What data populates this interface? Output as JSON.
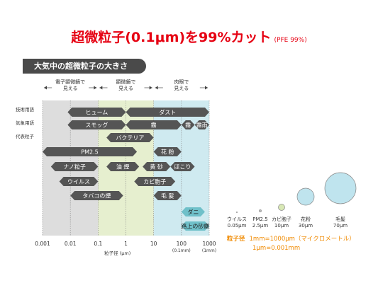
{
  "headline": {
    "main": "超微粒子(0.1μm)を99%カット",
    "sub": "(PFE 99%)"
  },
  "section_title": "大気中の超微粒子の大きさ",
  "regions": [
    {
      "label": "電子顕微鏡で\n見える",
      "from": 0.001,
      "to": 0.1,
      "color": "#dddddd"
    },
    {
      "label": "顕微鏡で\n見える",
      "from": 0.1,
      "to": 10,
      "color": "#e6efcf"
    },
    {
      "label": "肉眼で\n見える",
      "from": 10,
      "to": 1000,
      "color": "#cfeaf0"
    }
  ],
  "row_labels": [
    "技術用語",
    "気象用語",
    "代表粒子"
  ],
  "bars": [
    {
      "label": "ヒューム",
      "from": 0.008,
      "to": 1,
      "row": 0
    },
    {
      "label": "ダスト",
      "from": 1,
      "to": 1000,
      "row": 0
    },
    {
      "label": "スモッグ",
      "from": 0.008,
      "to": 1,
      "row": 1
    },
    {
      "label": "霧",
      "from": 1,
      "to": 100,
      "row": 1
    },
    {
      "label": "霧",
      "from": 100,
      "to": 300,
      "row": 1
    },
    {
      "label": "霧雨",
      "from": 300,
      "to": 1000,
      "row": 1
    },
    {
      "label": "バクテリア",
      "from": 0.2,
      "to": 10,
      "row": 2
    },
    {
      "label": "花 粉",
      "from": 10,
      "to": 100,
      "row": 3
    },
    {
      "label": "PM2.5",
      "from": 0.001,
      "to": 2.5,
      "row": 3
    },
    {
      "label": "ナノ粒子",
      "from": 0.002,
      "to": 0.1,
      "row": 4
    },
    {
      "label": "油 煙",
      "from": 0.2,
      "to": 3,
      "row": 4
    },
    {
      "label": "黄 砂",
      "from": 4,
      "to": 40,
      "row": 4
    },
    {
      "label": "ほこり",
      "from": 40,
      "to": 300,
      "row": 4
    },
    {
      "label": "ウイルス",
      "from": 0.004,
      "to": 0.1,
      "row": 5
    },
    {
      "label": "カビ胞子",
      "from": 2,
      "to": 60,
      "row": 5
    },
    {
      "label": "タバコの煙",
      "from": 0.01,
      "to": 0.8,
      "row": 6
    },
    {
      "label": "毛 髪",
      "from": 10,
      "to": 100,
      "row": 6
    },
    {
      "label": "ダニ",
      "from": 100,
      "to": 700,
      "row": 7
    },
    {
      "label": "路上の砂塵",
      "from": 100,
      "to": 1000,
      "row": 8
    }
  ],
  "x_ticks": [
    {
      "value": 0.001,
      "label": "0.001",
      "sub": ""
    },
    {
      "value": 0.01,
      "label": "0.01",
      "sub": ""
    },
    {
      "value": 0.1,
      "label": "0.1",
      "sub": ""
    },
    {
      "value": 1,
      "label": "1",
      "sub": ""
    },
    {
      "value": 10,
      "label": "10",
      "sub": ""
    },
    {
      "value": 100,
      "label": "100",
      "sub": "(0.1mm)"
    },
    {
      "value": 1000,
      "label": "1000",
      "sub": "(1mm)"
    }
  ],
  "x_axis_label": "粒子径 (μm)",
  "size_legend": [
    {
      "name": "ウイルス",
      "size": "0.05μm",
      "color": "#bbbbbb"
    },
    {
      "name": "PM2.5",
      "size": "2.5μm",
      "color": "#bbbbbb"
    },
    {
      "name": "カビ胞子",
      "size": "10μm",
      "color": "#d8e8b5"
    },
    {
      "name": "花粉",
      "size": "30μm",
      "color": "#bfe4ee"
    },
    {
      "name": "毛髪",
      "size": "70μm",
      "color": "#bfe4ee"
    }
  ],
  "size_notes": {
    "label": "粒子径",
    "line1": "1mm=1000μm（マイクロメートル）",
    "line2": "1μm=0.001mm"
  },
  "colors": {
    "title_red": "#e60012",
    "bar_dark": "#555555",
    "bar_teal": "#6fc0c9",
    "note_orange": "#f08a00"
  }
}
